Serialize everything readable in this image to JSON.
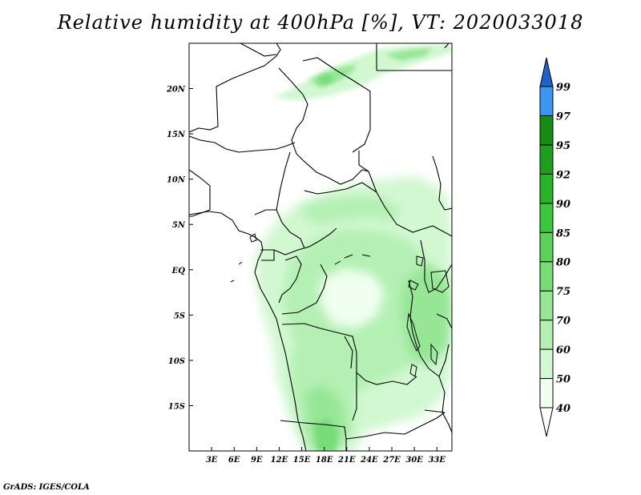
{
  "title": "Relative humidity at 400hPa [%], VT: 2020033018",
  "credit": "GrADS: IGES/COLA",
  "map": {
    "region": "Central Africa",
    "lon_range": [
      0,
      35
    ],
    "lat_range": [
      -20,
      25
    ],
    "x_ticks": [
      {
        "lon": 3,
        "label": "3E"
      },
      {
        "lon": 6,
        "label": "6E"
      },
      {
        "lon": 9,
        "label": "9E"
      },
      {
        "lon": 12,
        "label": "12E"
      },
      {
        "lon": 15,
        "label": "15E"
      },
      {
        "lon": 18,
        "label": "18E"
      },
      {
        "lon": 21,
        "label": "21E"
      },
      {
        "lon": 24,
        "label": "24E"
      },
      {
        "lon": 27,
        "label": "27E"
      },
      {
        "lon": 30,
        "label": "30E"
      },
      {
        "lon": 33,
        "label": "33E"
      }
    ],
    "y_ticks": [
      {
        "lat": 20,
        "label": "20N"
      },
      {
        "lat": 15,
        "label": "15N"
      },
      {
        "lat": 10,
        "label": "10N"
      },
      {
        "lat": 5,
        "label": "5N"
      },
      {
        "lat": 0,
        "label": "EQ"
      },
      {
        "lat": -5,
        "label": "5S"
      },
      {
        "lat": -10,
        "label": "10S"
      },
      {
        "lat": -15,
        "label": "15S"
      }
    ]
  },
  "colorbar": {
    "levels": [
      "40",
      "50",
      "60",
      "70",
      "75",
      "80",
      "85",
      "90",
      "92",
      "95",
      "97",
      "99"
    ],
    "colors": [
      "#f0fff0",
      "#d2f8d2",
      "#b4f0b4",
      "#96e696",
      "#78dc78",
      "#5ad25a",
      "#3cc83c",
      "#28b428",
      "#1e9e1e",
      "#148c14",
      "#3c96f0",
      "#2878dc",
      "#1e64c8"
    ]
  }
}
